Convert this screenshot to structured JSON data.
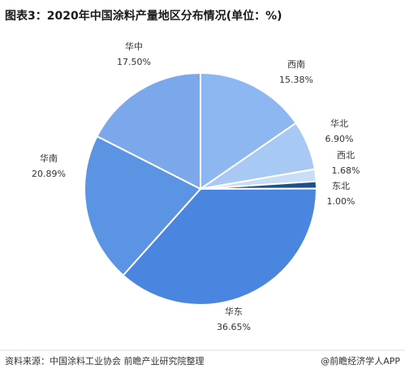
{
  "chart_data": {
    "type": "pie",
    "title": "图表3：2020年中国涂料产量地区分布情况(单位：%)",
    "categories": [
      "西南",
      "华北",
      "西北",
      "东北",
      "华东",
      "华南",
      "华中"
    ],
    "values": [
      15.38,
      6.9,
      1.68,
      1.0,
      36.65,
      20.89,
      17.5
    ],
    "value_labels": [
      "15.38%",
      "6.90%",
      "1.68%",
      "1.00%",
      "36.65%",
      "20.89%",
      "17.50%"
    ],
    "colors": [
      "#8db7f1",
      "#a8c9f4",
      "#c9ddf8",
      "#1f4f8f",
      "#4a86e0",
      "#5c94e4",
      "#7ba8eb"
    ],
    "source": "资料来源：中国涂料工业协会 前瞻产业研究院整理",
    "credit": "@前瞻经济学人APP"
  }
}
